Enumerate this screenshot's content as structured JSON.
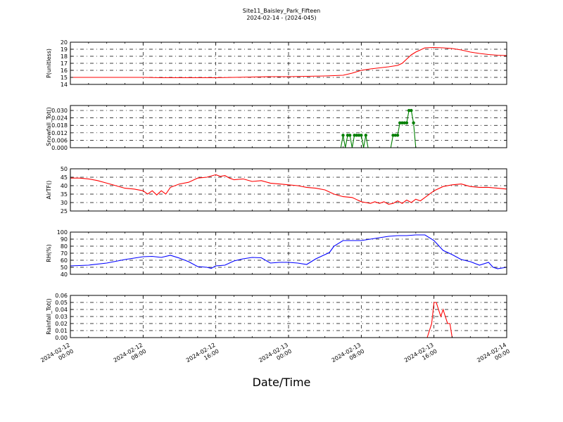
{
  "header": {
    "title": "Site11_Baisley_Park_Fifteen",
    "subtitle": "2024-02-14 - (2024-045)"
  },
  "xaxis": {
    "label": "Date/Time",
    "tick_labels": [
      [
        "2024-02-12",
        "00:00"
      ],
      [
        "2024-02-12",
        "08:00"
      ],
      [
        "2024-02-12",
        "16:00"
      ],
      [
        "2024-02-13",
        "00:00"
      ],
      [
        "2024-02-13",
        "08:00"
      ],
      [
        "2024-02-13",
        "16:00"
      ],
      [
        "2024-02-14",
        "00:00"
      ]
    ]
  },
  "chart_data": [
    {
      "type": "line",
      "ylabel": "P(unitless)",
      "ylim": [
        14,
        20
      ],
      "yticks": [
        14,
        15,
        16,
        17,
        18,
        19,
        20
      ],
      "tick_format": "0",
      "color": "#ff0000",
      "markers": false,
      "grid": true,
      "x_hours": [
        0,
        2,
        4,
        6,
        8,
        10,
        12,
        14,
        16,
        18,
        20,
        22,
        24,
        26,
        28,
        29,
        30,
        31,
        32,
        33,
        34,
        35,
        36,
        36.5,
        37,
        37.5,
        38,
        39,
        40,
        41,
        42,
        43,
        44,
        45,
        46,
        47,
        48
      ],
      "values": [
        15.0,
        15.0,
        15.0,
        15.0,
        15.0,
        14.95,
        14.95,
        14.95,
        14.95,
        15.0,
        15.05,
        15.1,
        15.1,
        15.15,
        15.2,
        15.25,
        15.3,
        15.6,
        16.0,
        16.2,
        16.35,
        16.5,
        16.7,
        17.0,
        17.6,
        18.2,
        18.6,
        19.2,
        19.25,
        19.2,
        19.1,
        18.9,
        18.6,
        18.4,
        18.25,
        18.15,
        18.1
      ]
    },
    {
      "type": "line",
      "ylabel": "Snowfall_Tot()",
      "ylim": [
        0,
        0.034
      ],
      "yticks": [
        0.0,
        0.006,
        0.012,
        0.018,
        0.024,
        0.03
      ],
      "tick_format": "0.000",
      "color": "#007f00",
      "markers": true,
      "grid": true,
      "x_hours": [
        0,
        29.75,
        30.0,
        30.25,
        30.5,
        30.75,
        31.0,
        31.25,
        31.5,
        31.75,
        32.0,
        32.25,
        32.5,
        32.75,
        33.0,
        35.25,
        35.5,
        35.75,
        36.0,
        36.25,
        36.5,
        36.75,
        37.0,
        37.25,
        37.5,
        37.75,
        38.0,
        38.25,
        48
      ],
      "values": [
        0,
        0,
        0.01,
        0,
        0.01,
        0.01,
        0,
        0.01,
        0.01,
        0.01,
        0.01,
        0,
        0.01,
        0,
        0,
        0,
        0.01,
        0.01,
        0.01,
        0.02,
        0.02,
        0.02,
        0.02,
        0.03,
        0.03,
        0.02,
        0,
        0,
        0
      ]
    },
    {
      "type": "line",
      "ylabel": "AirTF()",
      "ylim": [
        25,
        50
      ],
      "yticks": [
        25,
        30,
        35,
        40,
        45,
        50
      ],
      "tick_format": "0",
      "color": "#ff0000",
      "markers": false,
      "grid": true,
      "x_hours": [
        0,
        1,
        2,
        3,
        4,
        5,
        6,
        7,
        8,
        8.5,
        9,
        9.5,
        10,
        10.5,
        11,
        11.5,
        12,
        13,
        14,
        15,
        16,
        16.5,
        17,
        17.5,
        18,
        19,
        20,
        21,
        22,
        23,
        24,
        25,
        26,
        27,
        28,
        29,
        30,
        31,
        32,
        32.5,
        33,
        33.5,
        34,
        34.5,
        35,
        35.5,
        36,
        36.5,
        37,
        37.5,
        38,
        38.5,
        39,
        40,
        41,
        42,
        43,
        44,
        45,
        46,
        47,
        48
      ],
      "values": [
        44.5,
        44.5,
        44.0,
        43.0,
        41.5,
        40.0,
        38.5,
        38.0,
        37.0,
        35.0,
        37.0,
        34.5,
        37.0,
        35.0,
        39.0,
        40.0,
        41.0,
        42.0,
        44.5,
        45.0,
        46.5,
        45.5,
        46.0,
        44.5,
        43.5,
        44.0,
        42.5,
        43.0,
        41.5,
        41.0,
        40.5,
        40.0,
        39.0,
        38.5,
        37.5,
        35.0,
        33.5,
        33.0,
        30.5,
        30.0,
        29.5,
        30.5,
        29.5,
        30.5,
        29.0,
        29.5,
        31.0,
        29.5,
        31.5,
        30.0,
        32.0,
        31.0,
        33.0,
        37.0,
        39.5,
        40.5,
        41.0,
        39.5,
        39.0,
        39.0,
        38.5,
        38.0
      ]
    },
    {
      "type": "line",
      "ylabel": "RH(%)",
      "ylim": [
        40,
        100
      ],
      "yticks": [
        40,
        50,
        60,
        70,
        80,
        90,
        100
      ],
      "tick_format": "0",
      "color": "#0000ff",
      "markers": false,
      "grid": true,
      "x_hours": [
        0,
        2,
        4,
        6,
        8,
        9,
        10,
        11,
        12,
        13,
        14,
        15,
        15.5,
        16,
        17,
        18,
        19,
        20,
        21,
        22,
        23,
        24,
        25,
        26,
        27,
        28,
        28.5,
        29,
        30,
        31,
        32,
        33,
        34,
        35,
        36,
        37,
        38,
        39,
        40,
        41,
        42,
        43,
        44,
        45,
        46,
        46.5,
        47,
        48
      ],
      "values": [
        52.0,
        53.0,
        56.0,
        61.0,
        65.0,
        65.5,
        64.0,
        67.0,
        63.0,
        58.0,
        51.0,
        50.0,
        48.5,
        52.0,
        53.0,
        59.0,
        62.0,
        64.0,
        63.5,
        56.0,
        57.0,
        57.0,
        56.0,
        54.0,
        62.0,
        68.0,
        71.0,
        80.0,
        88.0,
        88.0,
        88.0,
        90.0,
        92.0,
        94.0,
        95.0,
        95.0,
        96.0,
        96.0,
        88.0,
        74.0,
        68.0,
        61.0,
        58.0,
        53.0,
        57.0,
        50.0,
        48.0,
        50.0
      ]
    },
    {
      "type": "line",
      "ylabel": "Rainfall_Tot()",
      "ylim": [
        0,
        0.06
      ],
      "yticks": [
        0.0,
        0.01,
        0.02,
        0.03,
        0.04,
        0.05,
        0.06
      ],
      "tick_format": "0.00",
      "color": "#ff0000",
      "markers": false,
      "grid": true,
      "x_hours": [
        0,
        39.25,
        39.5,
        39.75,
        40.0,
        40.25,
        40.5,
        40.75,
        41.0,
        41.25,
        41.5,
        41.75,
        42.0,
        48
      ],
      "values": [
        0,
        0,
        0.01,
        0.02,
        0.05,
        0.05,
        0.04,
        0.03,
        0.04,
        0.03,
        0.02,
        0.02,
        0,
        0
      ]
    }
  ]
}
